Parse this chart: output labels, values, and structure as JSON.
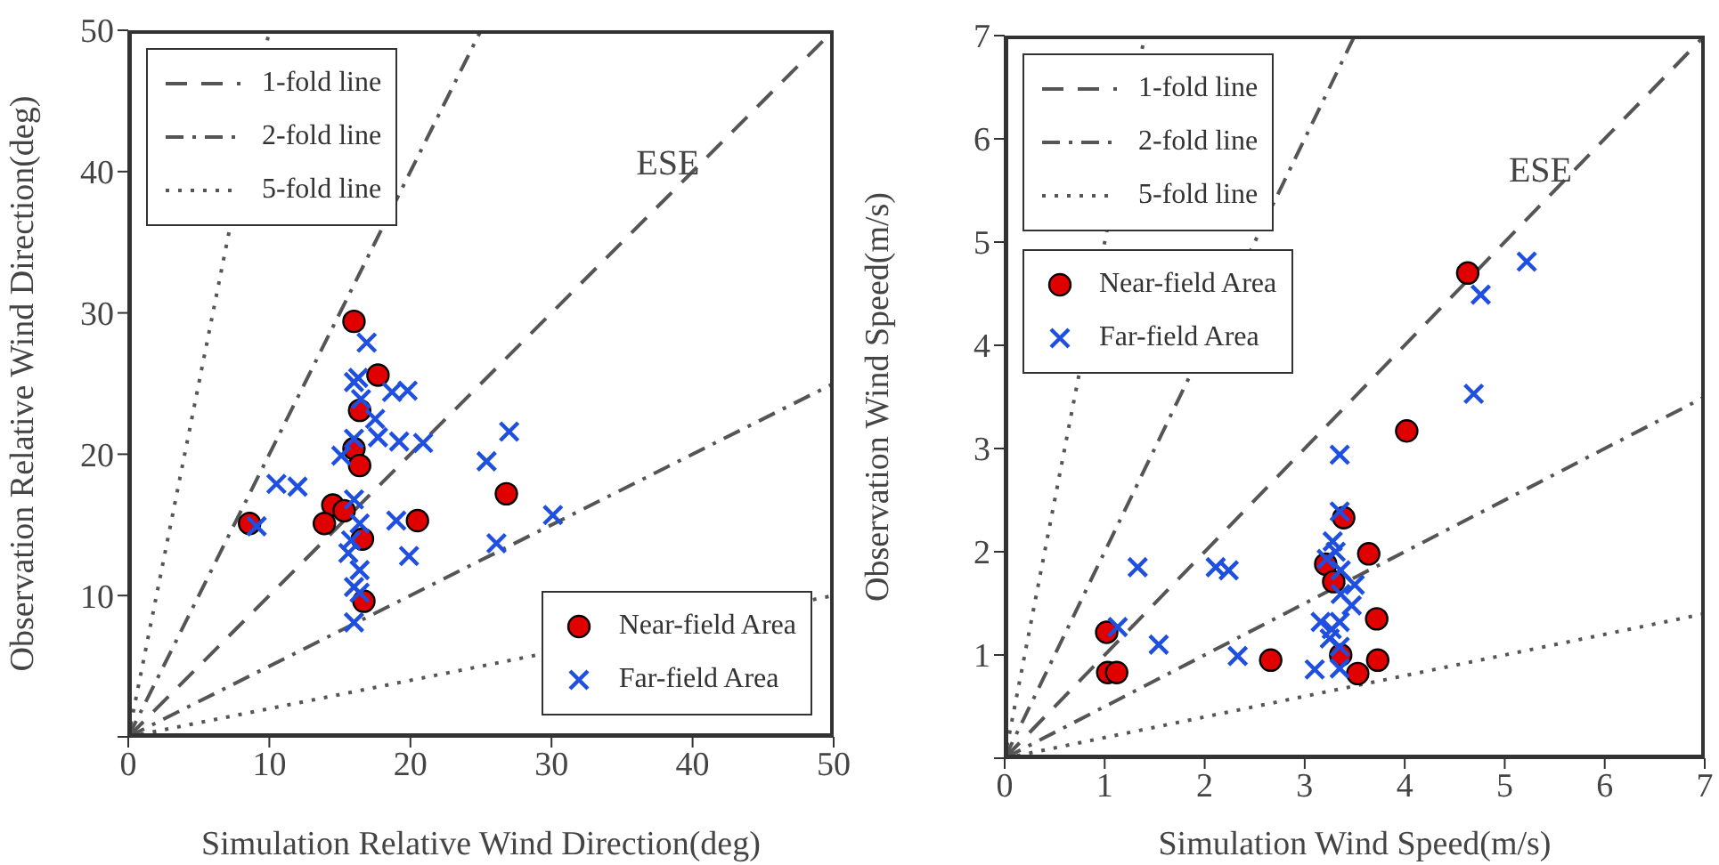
{
  "chart_data": [
    {
      "type": "scatter",
      "xlabel": "Simulation Relative Wind Direction(deg)",
      "ylabel": "Observation Relative Wind Direction(deg)",
      "annotations": [
        "ESE"
      ],
      "xlim": [
        0,
        50
      ],
      "ylim": [
        0,
        50
      ],
      "xticks": [
        0,
        10,
        20,
        30,
        40,
        50
      ],
      "yticks": [
        {
          "value": 0,
          "label": null
        },
        10,
        20,
        30,
        40,
        50
      ],
      "legend": "top left",
      "series": [
        {
          "name": "1-fold line",
          "type": "line",
          "color": "#555555",
          "line_style": "dashed",
          "marker": "none",
          "x": [
            0,
            50
          ],
          "values": [
            0,
            50
          ]
        },
        {
          "name": "2-fold line",
          "type": "line",
          "color": "#555555",
          "line_style": "dashdot",
          "marker": "none",
          "x": [
            0,
            25
          ],
          "values": [
            0,
            50
          ]
        },
        {
          "type": "line",
          "color": "#555555",
          "line_style": "dashdot",
          "marker": "none",
          "x": [
            0,
            50
          ],
          "values": [
            0,
            25
          ]
        },
        {
          "name": "5-fold line",
          "type": "line",
          "color": "#555555",
          "line_style": "dotted",
          "marker": "none",
          "x": [
            0,
            10
          ],
          "values": [
            0,
            50
          ]
        },
        {
          "type": "line",
          "color": "#555555",
          "line_style": "dotted",
          "marker": "none",
          "x": [
            0,
            50
          ],
          "values": [
            0,
            10
          ]
        },
        {
          "name": "Near-field Area",
          "color": "#e00000",
          "marker": "circle",
          "x": [
            8.6,
            16.0,
            17.7,
            16.4,
            16.0,
            16.4,
            14.5,
            15.3,
            13.9,
            16.6,
            16.7,
            20.5,
            26.8
          ],
          "values": [
            15.1,
            29.4,
            25.6,
            23.1,
            20.4,
            19.2,
            16.4,
            16.0,
            15.1,
            14.0,
            9.6,
            15.3,
            17.2
          ]
        },
        {
          "name": "Far-field Area",
          "color": "#1f4fe0",
          "marker": "cross",
          "x": [
            9.1,
            10.5,
            12.0,
            16.9,
            16.0,
            16.3,
            16.5,
            17.5,
            17.7,
            16.0,
            18.7,
            19.8,
            19.2,
            20.9,
            15.1,
            16.0,
            16.4,
            15.8,
            15.6,
            16.4,
            16.0,
            16.4,
            16.0,
            19.0,
            19.9,
            25.4,
            27.0,
            26.1,
            30.1
          ],
          "values": [
            14.9,
            17.9,
            17.7,
            27.9,
            25.1,
            25.4,
            23.9,
            22.5,
            21.2,
            21.1,
            24.4,
            24.5,
            20.9,
            20.8,
            19.9,
            16.8,
            15.1,
            13.9,
            13.0,
            11.8,
            10.6,
            10.2,
            8.1,
            15.3,
            12.8,
            19.5,
            21.6,
            13.7,
            15.7
          ]
        }
      ]
    },
    {
      "type": "scatter",
      "xlabel": "Simulation Wind Speed(m/s)",
      "ylabel": "Observation Wind Speed(m/s)",
      "annotations": [
        "ESE"
      ],
      "xlim": [
        0,
        7
      ],
      "ylim": [
        0,
        7
      ],
      "xticks": [
        0,
        1,
        2,
        3,
        4,
        5,
        6,
        7
      ],
      "yticks": [
        {
          "value": 0,
          "label": null
        },
        1,
        2,
        3,
        4,
        5,
        6,
        7
      ],
      "legend": "top left",
      "series": [
        {
          "name": "1-fold line",
          "type": "line",
          "color": "#555555",
          "line_style": "dashed",
          "marker": "none",
          "x": [
            0,
            7
          ],
          "values": [
            0,
            7
          ]
        },
        {
          "name": "2-fold line",
          "type": "line",
          "color": "#555555",
          "line_style": "dashdot",
          "marker": "none",
          "x": [
            0,
            3.5
          ],
          "values": [
            0,
            7
          ]
        },
        {
          "type": "line",
          "color": "#555555",
          "line_style": "dashdot",
          "marker": "none",
          "x": [
            0,
            7
          ],
          "values": [
            0,
            3.5
          ]
        },
        {
          "name": "5-fold line",
          "type": "line",
          "color": "#555555",
          "line_style": "dotted",
          "marker": "none",
          "x": [
            0,
            1.4
          ],
          "values": [
            0,
            7
          ]
        },
        {
          "type": "line",
          "color": "#555555",
          "line_style": "dotted",
          "marker": "none",
          "x": [
            0,
            7
          ],
          "values": [
            0,
            1.4
          ]
        },
        {
          "name": "Near-field Area",
          "color": "#e00000",
          "marker": "circle",
          "x": [
            4.63,
            4.02,
            3.39,
            3.64,
            3.21,
            3.29,
            3.72,
            3.73,
            3.53,
            3.36,
            2.66,
            1.02,
            1.03,
            1.12
          ],
          "values": [
            4.7,
            3.17,
            2.33,
            1.98,
            1.88,
            1.71,
            1.35,
            0.95,
            0.82,
            1.0,
            0.95,
            1.22,
            0.83,
            0.83
          ]
        },
        {
          "name": "Far-field Area",
          "color": "#1f4fe0",
          "marker": "cross",
          "x": [
            5.22,
            4.76,
            4.69,
            3.35,
            3.35,
            1.33,
            2.11,
            2.24,
            3.28,
            3.31,
            3.22,
            3.36,
            3.36,
            3.5,
            3.47,
            3.16,
            3.35,
            3.25,
            3.27,
            1.13,
            1.54,
            2.33,
            3.1,
            3.35,
            3.35
          ],
          "values": [
            4.81,
            4.49,
            3.53,
            2.94,
            2.39,
            1.85,
            1.85,
            1.82,
            2.1,
            2.0,
            1.93,
            1.82,
            1.59,
            1.68,
            1.48,
            1.32,
            1.32,
            1.16,
            1.25,
            1.27,
            1.1,
            0.99,
            0.86,
            1.08,
            0.87
          ]
        }
      ]
    }
  ]
}
